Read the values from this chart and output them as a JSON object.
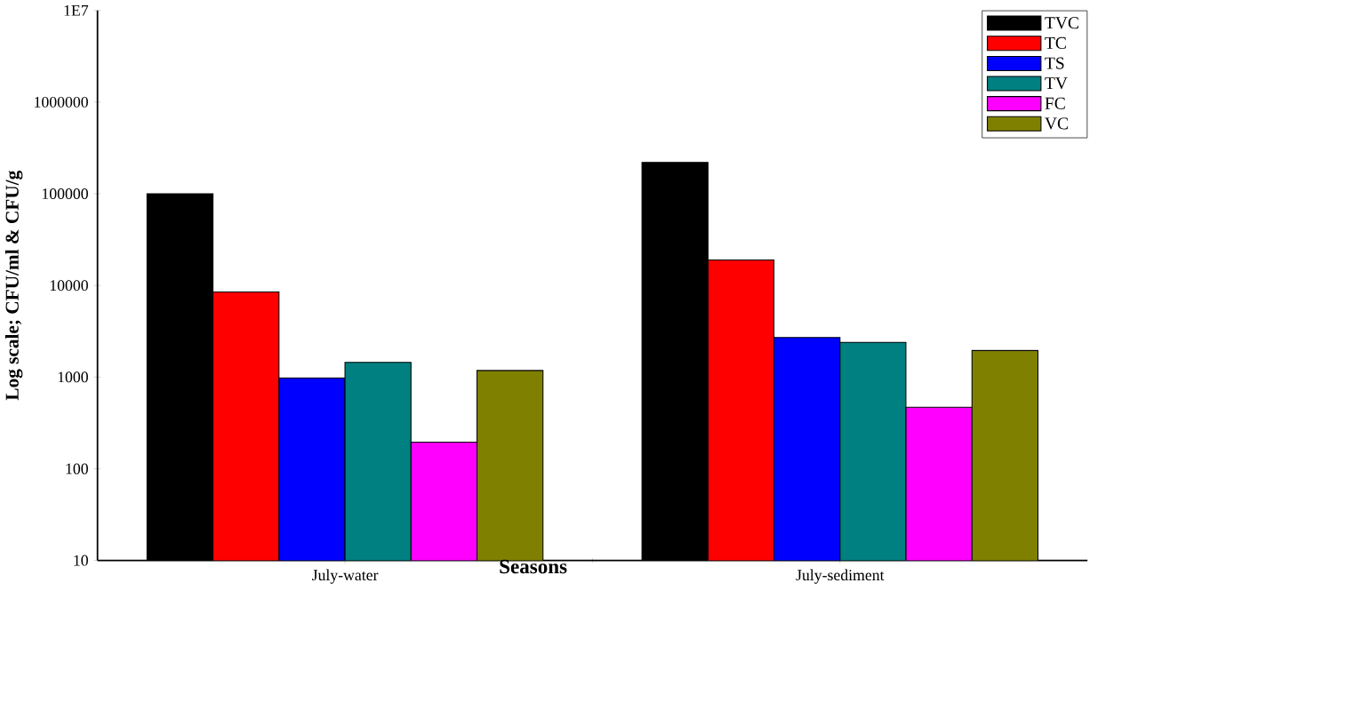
{
  "chart_data": {
    "type": "bar",
    "xlabel": "Seasons",
    "ylabel": "Log scale; CFU/ml & CFU/g",
    "categories": [
      "July-water",
      "July-sediment"
    ],
    "series": [
      {
        "name": "TVC",
        "color": "#000000",
        "values": [
          100000,
          220000
        ]
      },
      {
        "name": "TC",
        "color": "#ff0000",
        "values": [
          8500,
          19000
        ]
      },
      {
        "name": "TS",
        "color": "#0000ff",
        "values": [
          980,
          2700
        ]
      },
      {
        "name": "TV",
        "color": "#008080",
        "values": [
          1450,
          2400
        ]
      },
      {
        "name": "FC",
        "color": "#ff00ff",
        "values": [
          195,
          470
        ]
      },
      {
        "name": "VC",
        "color": "#808000",
        "values": [
          1180,
          1950
        ]
      }
    ],
    "log": true,
    "ylim": [
      10,
      10000000
    ],
    "yticks": [
      10,
      100,
      1000,
      10000,
      100000,
      1000000,
      {
        "value": 10000000,
        "label": "1E7"
      }
    ],
    "legend": "top right",
    "grid": false
  }
}
